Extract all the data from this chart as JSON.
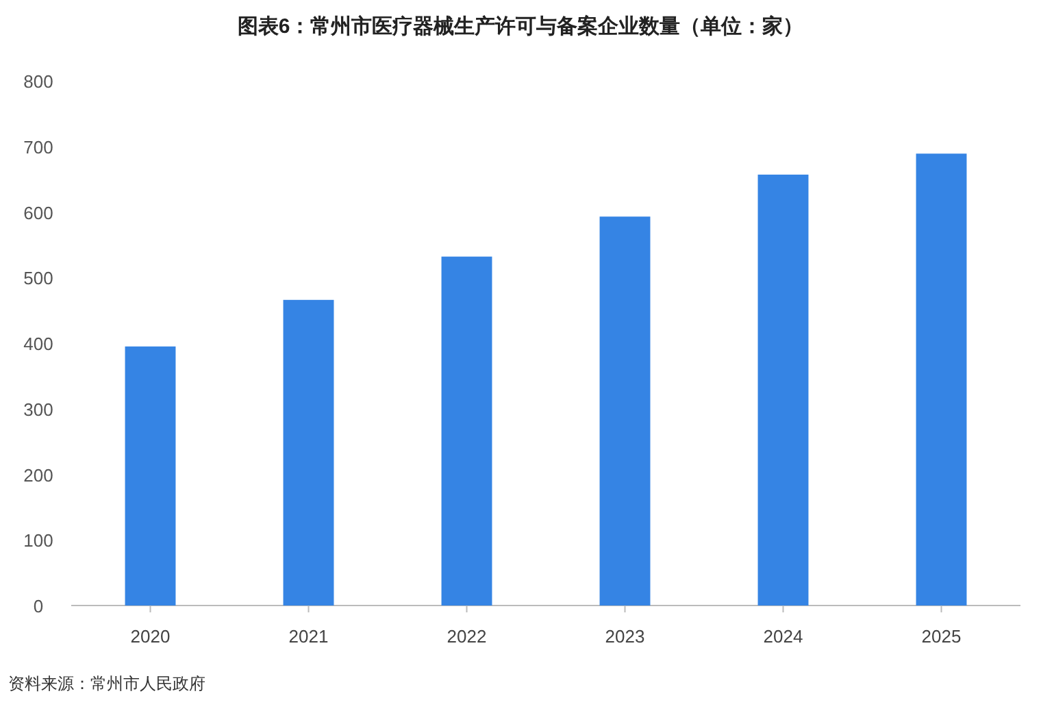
{
  "chart_data": {
    "type": "bar",
    "title": "图表6：常州市医疗器械生产许可与备案企业数量（单位：家）",
    "categories": [
      "2020",
      "2021",
      "2022",
      "2023",
      "2024",
      "2025"
    ],
    "values": [
      395,
      466,
      532,
      593,
      657,
      689
    ],
    "color": "#3584e4",
    "ylim": [
      0,
      800
    ],
    "yticks": [
      0,
      100,
      200,
      300,
      400,
      500,
      600,
      700,
      800
    ],
    "grid": false,
    "annotations": [
      "资料来源：常州市人民政府"
    ]
  }
}
